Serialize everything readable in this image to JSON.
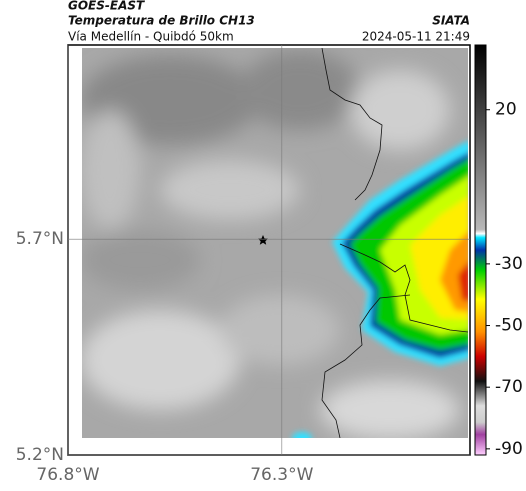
{
  "header": {
    "title": "GOES-EAST",
    "subtitle": "Temperatura de Brillo CH13",
    "location": "Vía Medellín - Quibdó 50km",
    "source": "SIATA",
    "datetime": "2024-05-11 21:49"
  },
  "map": {
    "xlim": [
      -76.8,
      -75.86
    ],
    "ylim": [
      5.2,
      6.15
    ],
    "xticks": [
      {
        "value": -76.8,
        "label": "76.8°W"
      },
      {
        "value": -76.3,
        "label": "76.3°W"
      }
    ],
    "yticks": [
      {
        "value": 5.7,
        "label": "5.7°N"
      },
      {
        "value": 5.2,
        "label": "5.2°N"
      }
    ]
  },
  "colorbar": {
    "range": [
      41,
      -92
    ],
    "ticks": [
      20,
      -30,
      -50,
      -70,
      -90
    ]
  }
}
